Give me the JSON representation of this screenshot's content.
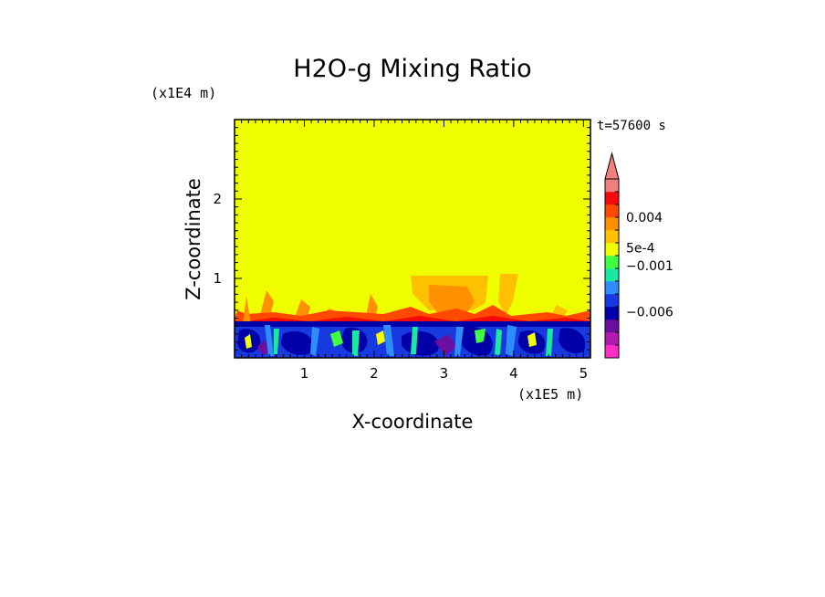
{
  "chart_data": {
    "type": "heatmap",
    "title": "H2O-g Mixing Ratio",
    "xlabel": "X-coordinate",
    "ylabel": "Z-coordinate",
    "x_unit": "(x1E5 m)",
    "y_unit": "(x1E4 m)",
    "time_label": "t=57600 s",
    "xlim": [
      0,
      5.1
    ],
    "ylim": [
      0,
      3
    ],
    "x_ticks": [
      1,
      2,
      3,
      4,
      5
    ],
    "y_ticks": [
      1,
      2
    ],
    "grid": false,
    "background_level": "0 to 5e-4 (uniform aloft)",
    "colorbar": {
      "extend": "max",
      "labels": [
        {
          "text": "0.004",
          "value": 0.004
        },
        {
          "text": "5e-4",
          "value": 0.0005
        },
        {
          "text": "−0.001",
          "value": -0.001
        },
        {
          "text": "−0.006",
          "value": -0.006
        }
      ],
      "colors": [
        "#ff2ec4",
        "#b01ab0",
        "#6a10a0",
        "#0000a8",
        "#1838e0",
        "#2f8cff",
        "#18e8a0",
        "#40ff40",
        "#f0ff00",
        "#ffc000",
        "#ff9000",
        "#ff4800",
        "#f40a0a",
        "#f08080"
      ],
      "top_triangle_color": "#f08080"
    }
  }
}
